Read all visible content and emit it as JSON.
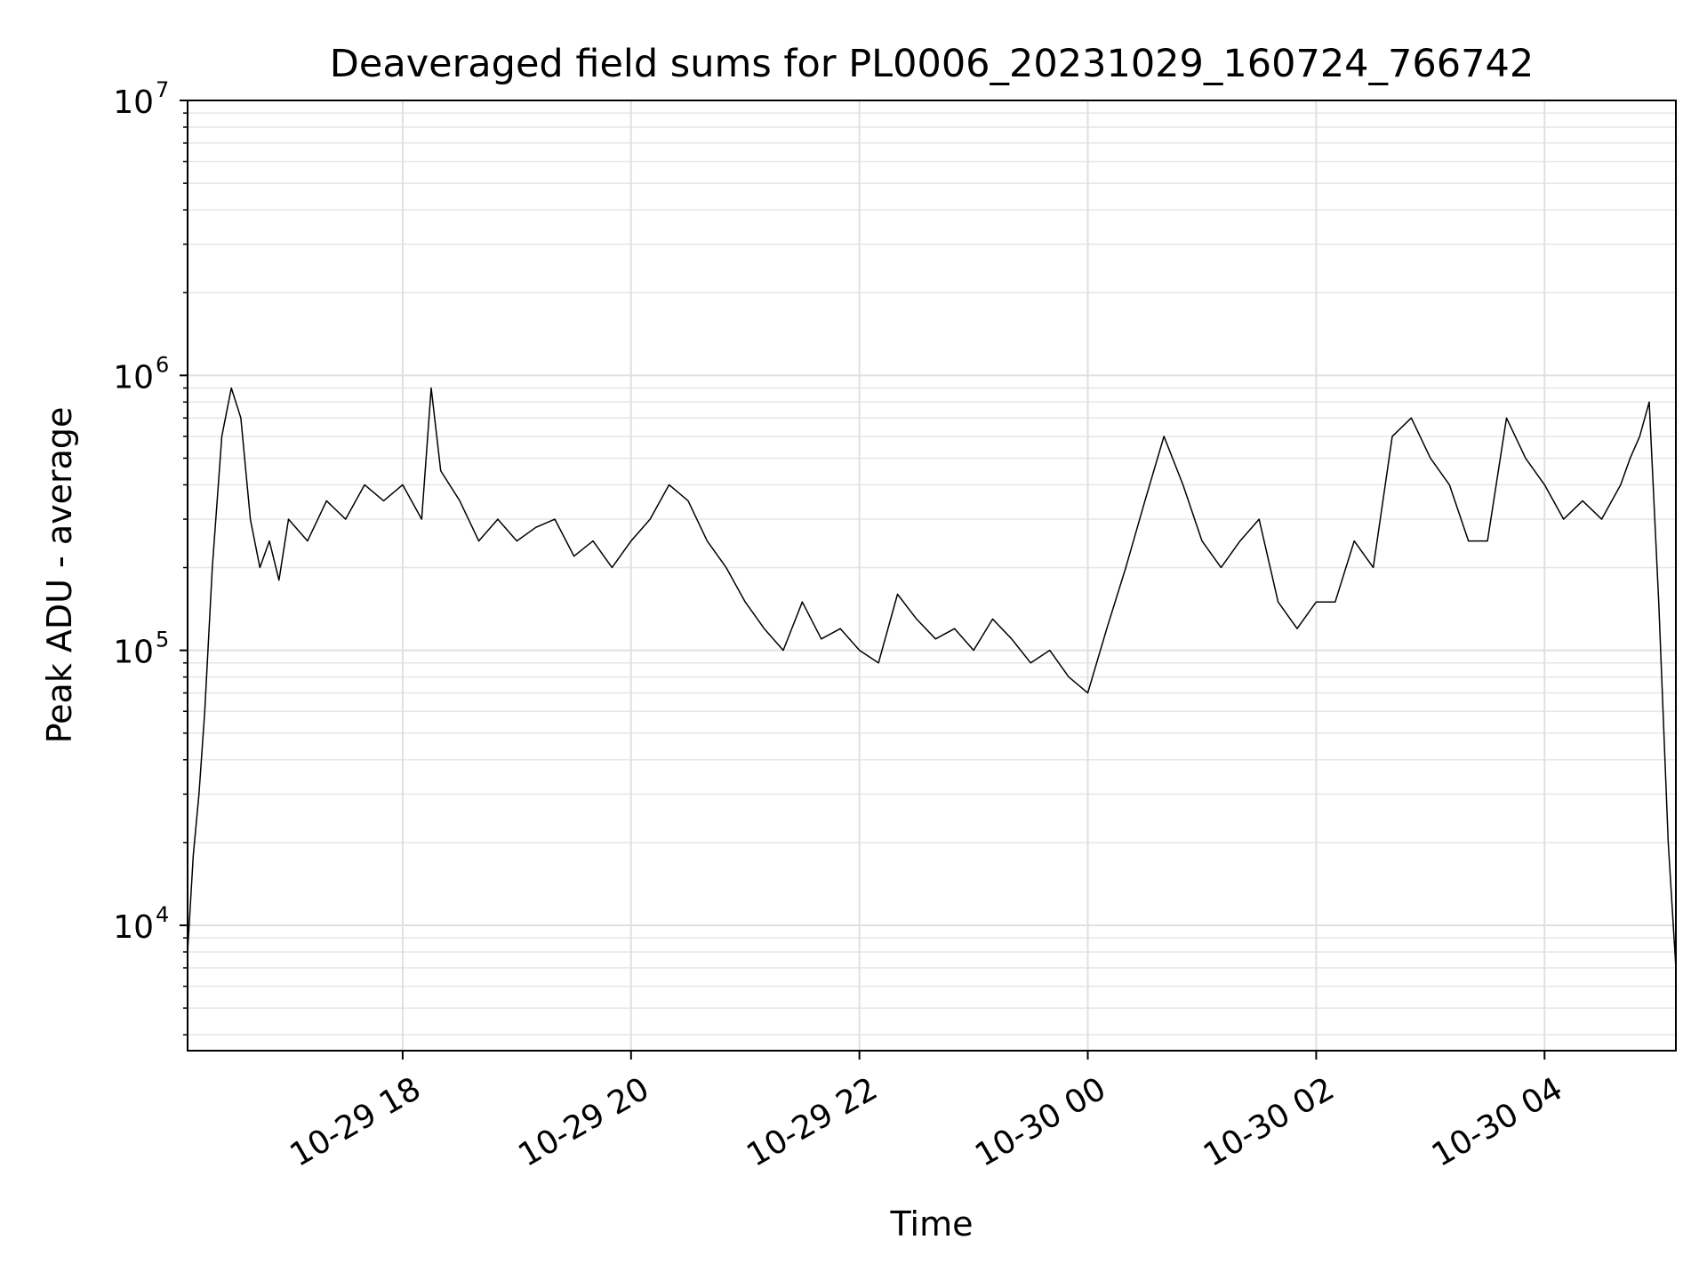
{
  "chart_data": {
    "type": "line",
    "title": "Deaveraged field sums for PL0006_20231029_160724_766742",
    "xlabel": "Time",
    "ylabel": "Peak ADU - average",
    "yscale": "log",
    "ylim": [
      3500,
      10000000
    ],
    "xlim": [
      "2023-10-29 16:07",
      "2023-10-30 05:09"
    ],
    "grid": true,
    "line_color": "#000000",
    "y_ticks": [
      {
        "base": "10",
        "exp": "4",
        "value": 10000
      },
      {
        "base": "10",
        "exp": "5",
        "value": 100000
      },
      {
        "base": "10",
        "exp": "6",
        "value": 1000000
      },
      {
        "base": "10",
        "exp": "7",
        "value": 10000000
      }
    ],
    "x_ticks": [
      {
        "label": "10-29 18",
        "time": "2023-10-29 18:00"
      },
      {
        "label": "10-29 20",
        "time": "2023-10-29 20:00"
      },
      {
        "label": "10-29 22",
        "time": "2023-10-29 22:00"
      },
      {
        "label": "10-30 00",
        "time": "2023-10-30 00:00"
      },
      {
        "label": "10-30 02",
        "time": "2023-10-30 02:00"
      },
      {
        "label": "10-30 04",
        "time": "2023-10-30 04:00"
      }
    ],
    "series": [
      {
        "x": [
          "2023-10-29 16:07",
          "2023-10-29 16:10",
          "2023-10-29 16:13",
          "2023-10-29 16:16",
          "2023-10-29 16:20",
          "2023-10-29 16:25",
          "2023-10-29 16:30",
          "2023-10-29 16:35",
          "2023-10-29 16:40",
          "2023-10-29 16:45",
          "2023-10-29 16:50",
          "2023-10-29 16:55",
          "2023-10-29 17:00",
          "2023-10-29 17:10",
          "2023-10-29 17:20",
          "2023-10-29 17:30",
          "2023-10-29 17:40",
          "2023-10-29 17:50",
          "2023-10-29 18:00",
          "2023-10-29 18:10",
          "2023-10-29 18:15",
          "2023-10-29 18:20",
          "2023-10-29 18:30",
          "2023-10-29 18:40",
          "2023-10-29 18:50",
          "2023-10-29 19:00",
          "2023-10-29 19:10",
          "2023-10-29 19:20",
          "2023-10-29 19:30",
          "2023-10-29 19:40",
          "2023-10-29 19:50",
          "2023-10-29 20:00",
          "2023-10-29 20:10",
          "2023-10-29 20:20",
          "2023-10-29 20:30",
          "2023-10-29 20:40",
          "2023-10-29 20:50",
          "2023-10-29 21:00",
          "2023-10-29 21:10",
          "2023-10-29 21:20",
          "2023-10-29 21:30",
          "2023-10-29 21:40",
          "2023-10-29 21:50",
          "2023-10-29 22:00",
          "2023-10-29 22:10",
          "2023-10-29 22:20",
          "2023-10-29 22:30",
          "2023-10-29 22:40",
          "2023-10-29 22:50",
          "2023-10-29 23:00",
          "2023-10-29 23:10",
          "2023-10-29 23:20",
          "2023-10-29 23:30",
          "2023-10-29 23:40",
          "2023-10-29 23:50",
          "2023-10-30 00:00",
          "2023-10-30 00:10",
          "2023-10-30 00:20",
          "2023-10-30 00:30",
          "2023-10-30 00:40",
          "2023-10-30 00:50",
          "2023-10-30 01:00",
          "2023-10-30 01:10",
          "2023-10-30 01:20",
          "2023-10-30 01:30",
          "2023-10-30 01:40",
          "2023-10-30 01:50",
          "2023-10-30 02:00",
          "2023-10-30 02:10",
          "2023-10-30 02:20",
          "2023-10-30 02:30",
          "2023-10-30 02:40",
          "2023-10-30 02:50",
          "2023-10-30 03:00",
          "2023-10-30 03:10",
          "2023-10-30 03:20",
          "2023-10-30 03:30",
          "2023-10-30 03:40",
          "2023-10-30 03:50",
          "2023-10-30 04:00",
          "2023-10-30 04:10",
          "2023-10-30 04:20",
          "2023-10-30 04:30",
          "2023-10-30 04:40",
          "2023-10-30 04:45",
          "2023-10-30 04:50",
          "2023-10-30 04:55",
          "2023-10-30 05:00",
          "2023-10-30 05:05",
          "2023-10-30 05:09"
        ],
        "y": [
          8000,
          18000,
          30000,
          60000,
          200000,
          600000,
          900000,
          700000,
          300000,
          200000,
          250000,
          180000,
          300000,
          250000,
          350000,
          300000,
          400000,
          350000,
          400000,
          300000,
          900000,
          450000,
          350000,
          250000,
          300000,
          250000,
          280000,
          300000,
          220000,
          250000,
          200000,
          250000,
          300000,
          400000,
          350000,
          250000,
          200000,
          150000,
          120000,
          100000,
          150000,
          110000,
          120000,
          100000,
          90000,
          160000,
          130000,
          110000,
          120000,
          100000,
          130000,
          110000,
          90000,
          100000,
          80000,
          70000,
          120000,
          200000,
          350000,
          600000,
          400000,
          250000,
          200000,
          250000,
          300000,
          150000,
          120000,
          150000,
          150000,
          250000,
          200000,
          600000,
          700000,
          500000,
          400000,
          250000,
          250000,
          700000,
          500000,
          400000,
          300000,
          350000,
          300000,
          400000,
          500000,
          600000,
          800000,
          150000,
          20000,
          7000
        ]
      }
    ]
  }
}
